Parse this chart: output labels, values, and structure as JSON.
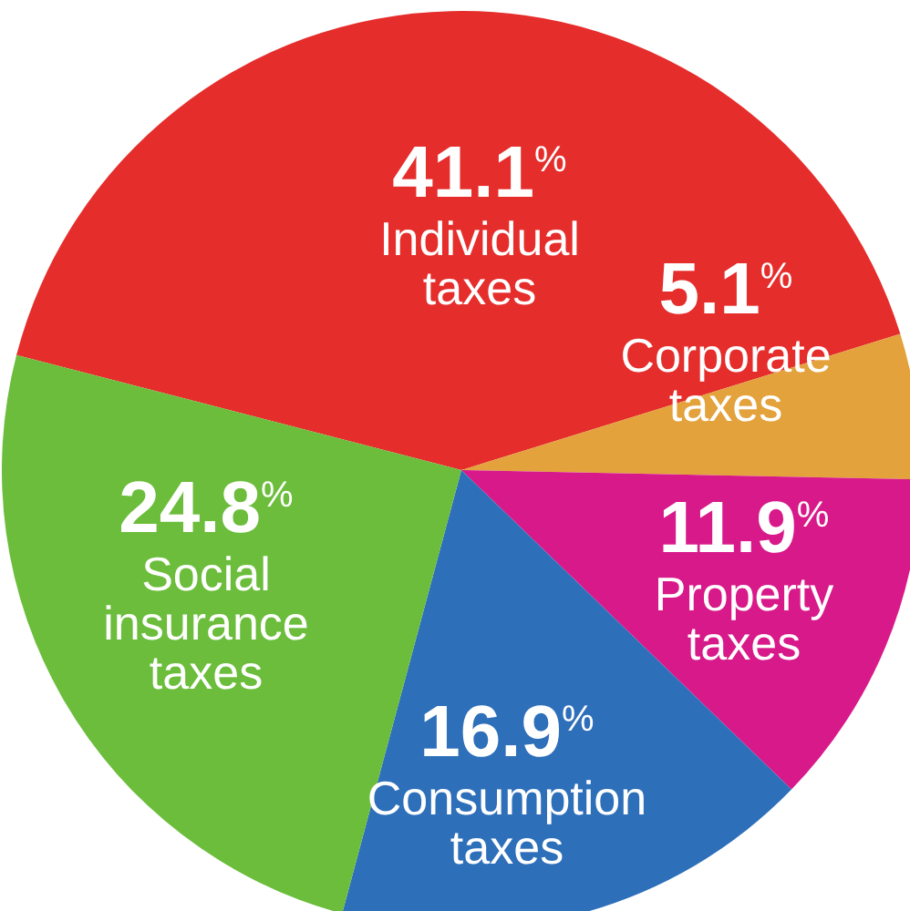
{
  "chart_data": {
    "type": "pie",
    "categories": [
      "Individual taxes",
      "Corporate taxes",
      "Property taxes",
      "Consumption taxes",
      "Social insurance taxes"
    ],
    "values": [
      41.1,
      5.1,
      11.9,
      16.9,
      24.8
    ],
    "colors": [
      "#e52d2b",
      "#e3a23c",
      "#d8198a",
      "#2e6fba",
      "#6bbd3b"
    ],
    "value_labels": [
      "41.1$^{%}$",
      "5.1$^{%}$",
      "11.9$^{%}$",
      "16.9$^{%}$",
      "24.8$^{%}$"
    ]
  }
}
